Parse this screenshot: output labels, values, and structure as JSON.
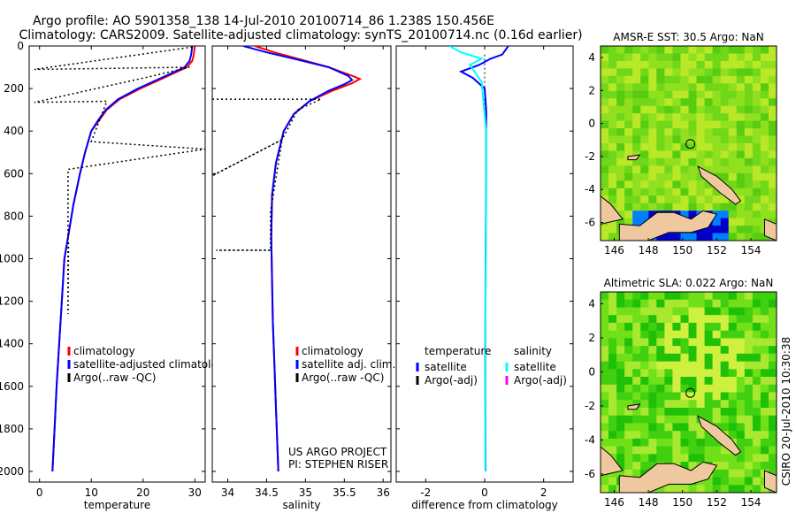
{
  "header": {
    "line1": "Argo profile: AO 5901358_138 14-Jul-2010 20100714_86 1.238S 150.456E",
    "line2": "Climatology: CARS2009. Satellite-adjusted climatology: synTS_20100714.nc (0.16d earlier)"
  },
  "side_label": "CSIRO 20-Jul-2010 10:30:38",
  "colors": {
    "climatology": "#ff0000",
    "satellite": "#0000ff",
    "argo": "#000000",
    "sat_sal": "#00ffff",
    "argo_sal_adj": "#ff00ff"
  },
  "chart_data": [
    {
      "id": "temperature",
      "type": "line",
      "xlabel": "temperature",
      "ylabel": "",
      "xlim": [
        -2,
        32
      ],
      "ylim": [
        2050,
        0
      ],
      "xticks": [
        0,
        10,
        20,
        30
      ],
      "yticks": [
        0,
        200,
        400,
        600,
        800,
        1000,
        1200,
        1400,
        1600,
        1800,
        2000
      ],
      "series": [
        {
          "name": "climatology",
          "color": "#ff0000",
          "style": "solid",
          "points": [
            [
              30,
              0
            ],
            [
              29.8,
              40
            ],
            [
              29.5,
              70
            ],
            [
              28.5,
              100
            ],
            [
              24,
              150
            ],
            [
              19.5,
              200
            ],
            [
              15.5,
              250
            ],
            [
              13,
              300
            ],
            [
              11.5,
              350
            ],
            [
              10,
              400
            ],
            [
              8.8,
              500
            ],
            [
              7.8,
              600
            ],
            [
              6.5,
              750
            ],
            [
              5.5,
              900
            ],
            [
              4.8,
              1000
            ],
            [
              4.3,
              1200
            ],
            [
              3.8,
              1400
            ],
            [
              3.3,
              1600
            ],
            [
              2.9,
              1800
            ],
            [
              2.5,
              2000
            ]
          ]
        },
        {
          "name": "satellite-adjusted climatology",
          "color": "#0000ff",
          "style": "solid",
          "points": [
            [
              29.5,
              0
            ],
            [
              29.3,
              40
            ],
            [
              29,
              70
            ],
            [
              28,
              100
            ],
            [
              23.5,
              150
            ],
            [
              19,
              200
            ],
            [
              15.2,
              250
            ],
            [
              12.8,
              300
            ],
            [
              11.3,
              350
            ],
            [
              10,
              400
            ],
            [
              8.8,
              500
            ],
            [
              7.8,
              600
            ],
            [
              6.5,
              750
            ],
            [
              5.5,
              900
            ],
            [
              4.8,
              1000
            ],
            [
              4.3,
              1200
            ],
            [
              3.8,
              1400
            ],
            [
              3.3,
              1600
            ],
            [
              2.9,
              1800
            ],
            [
              2.5,
              2000
            ]
          ]
        },
        {
          "name": "Argo(..raw -QC)",
          "color": "#000000",
          "style": "dotted",
          "points": [
            [
              29.5,
              5
            ],
            [
              -1,
              110
            ],
            [
              29,
              100
            ],
            [
              22,
              140
            ],
            [
              -1,
              265
            ],
            [
              13,
              260
            ],
            [
              10,
              450
            ],
            [
              32,
              485
            ],
            [
              5.5,
              580
            ],
            [
              5.5,
              1260
            ],
            [
              5.6,
              920
            ]
          ]
        }
      ],
      "legend": [
        "climatology",
        "satellite-adjusted climatology",
        "Argo(..raw -QC)"
      ],
      "legend_position": "lower-right"
    },
    {
      "id": "salinity",
      "type": "line",
      "xlabel": "salinity",
      "xlim": [
        33.8,
        36.1
      ],
      "ylim": [
        2050,
        0
      ],
      "xticks": [
        34,
        34.5,
        35,
        35.5,
        36
      ],
      "series": [
        {
          "name": "climatology",
          "color": "#ff0000",
          "style": "solid",
          "points": [
            [
              34.35,
              0
            ],
            [
              34.6,
              30
            ],
            [
              34.9,
              60
            ],
            [
              35.3,
              100
            ],
            [
              35.6,
              140
            ],
            [
              35.7,
              155
            ],
            [
              35.6,
              175
            ],
            [
              35.35,
              210
            ],
            [
              35.05,
              260
            ],
            [
              34.85,
              320
            ],
            [
              34.72,
              400
            ],
            [
              34.62,
              550
            ],
            [
              34.57,
              700
            ],
            [
              34.56,
              900
            ],
            [
              34.57,
              1100
            ],
            [
              34.58,
              1300
            ],
            [
              34.6,
              1500
            ],
            [
              34.62,
              1700
            ],
            [
              34.64,
              1900
            ],
            [
              34.65,
              2000
            ]
          ]
        },
        {
          "name": "satellite adj. clim.",
          "color": "#0000ff",
          "style": "solid",
          "points": [
            [
              34.2,
              0
            ],
            [
              34.5,
              30
            ],
            [
              34.85,
              60
            ],
            [
              35.3,
              100
            ],
            [
              35.55,
              140
            ],
            [
              35.6,
              160
            ],
            [
              35.5,
              180
            ],
            [
              35.3,
              210
            ],
            [
              35.05,
              260
            ],
            [
              34.85,
              320
            ],
            [
              34.72,
              400
            ],
            [
              34.62,
              550
            ],
            [
              34.57,
              700
            ],
            [
              34.56,
              900
            ],
            [
              34.57,
              1100
            ],
            [
              34.58,
              1300
            ],
            [
              34.6,
              1500
            ],
            [
              34.62,
              1700
            ],
            [
              34.64,
              1900
            ],
            [
              34.65,
              2000
            ]
          ]
        },
        {
          "name": "Argo(..raw -QC)",
          "color": "#000000",
          "style": "dotted",
          "points": [
            [
              33.8,
              250
            ],
            [
              35.2,
              250
            ],
            [
              34.9,
              300
            ],
            [
              34.7,
              440
            ],
            [
              33.8,
              610
            ],
            [
              34.7,
              440
            ],
            [
              34.55,
              780
            ],
            [
              34.55,
              960
            ],
            [
              33.85,
              960
            ],
            [
              34.55,
              960
            ],
            [
              34.55,
              960
            ]
          ]
        }
      ],
      "legend": [
        "climatology",
        "satellite adj. clim.",
        "Argo(..raw -QC)"
      ],
      "legend_position": "lower-right",
      "annotation": [
        "US ARGO PROJECT",
        "PI: STEPHEN RISER"
      ]
    },
    {
      "id": "difference",
      "type": "line",
      "xlabel": "difference from climatology",
      "xlim": [
        -3,
        3
      ],
      "ylim": [
        2050,
        0
      ],
      "xticks": [
        -2,
        0,
        2
      ],
      "series": [
        {
          "name": "temperature satellite",
          "color": "#0000ff",
          "style": "solid",
          "points": [
            [
              0.8,
              0
            ],
            [
              0.6,
              40
            ],
            [
              0.2,
              60
            ],
            [
              -0.2,
              90
            ],
            [
              -0.8,
              120
            ],
            [
              -0.4,
              150
            ],
            [
              0,
              200
            ],
            [
              0.05,
              300
            ],
            [
              0.05,
              600
            ],
            [
              0.03,
              1000
            ],
            [
              0.02,
              1500
            ],
            [
              0.03,
              2000
            ]
          ]
        },
        {
          "name": "salinity satellite",
          "color": "#00ffff",
          "style": "solid",
          "points": [
            [
              -1.2,
              0
            ],
            [
              -0.8,
              30
            ],
            [
              -0.1,
              60
            ],
            [
              -0.5,
              90
            ],
            [
              -0.3,
              130
            ],
            [
              -0.1,
              170
            ],
            [
              -0.05,
              250
            ],
            [
              0.05,
              400
            ],
            [
              0.05,
              700
            ],
            [
              0.03,
              1200
            ],
            [
              0.02,
              2000
            ]
          ]
        }
      ],
      "legend_groups": [
        {
          "title": "temperature",
          "items": [
            "satellite",
            "Argo(-adj)"
          ]
        },
        {
          "title": "salinity",
          "items": [
            "satellite",
            "Argo(-adj)"
          ]
        }
      ]
    },
    {
      "id": "sst_map",
      "type": "heatmap",
      "title": "AMSR-E SST: 30.5 Argo: NaN",
      "xlim": [
        145.2,
        155.5
      ],
      "ylim": [
        -7.1,
        4.7
      ],
      "xticks": [
        146,
        148,
        150,
        152,
        154
      ],
      "yticks": [
        4,
        2,
        0,
        -2,
        -4,
        -6
      ],
      "argo_marker": [
        150.456,
        -1.238
      ]
    },
    {
      "id": "sla_map",
      "type": "heatmap",
      "title": "Altimetric SLA: 0.022 Argo: NaN",
      "xlim": [
        145.2,
        155.5
      ],
      "ylim": [
        -7.1,
        4.7
      ],
      "xticks": [
        146,
        148,
        150,
        152,
        154
      ],
      "yticks": [
        4,
        2,
        0,
        -2,
        -4,
        -6
      ],
      "argo_marker": [
        150.456,
        -1.238
      ]
    }
  ]
}
